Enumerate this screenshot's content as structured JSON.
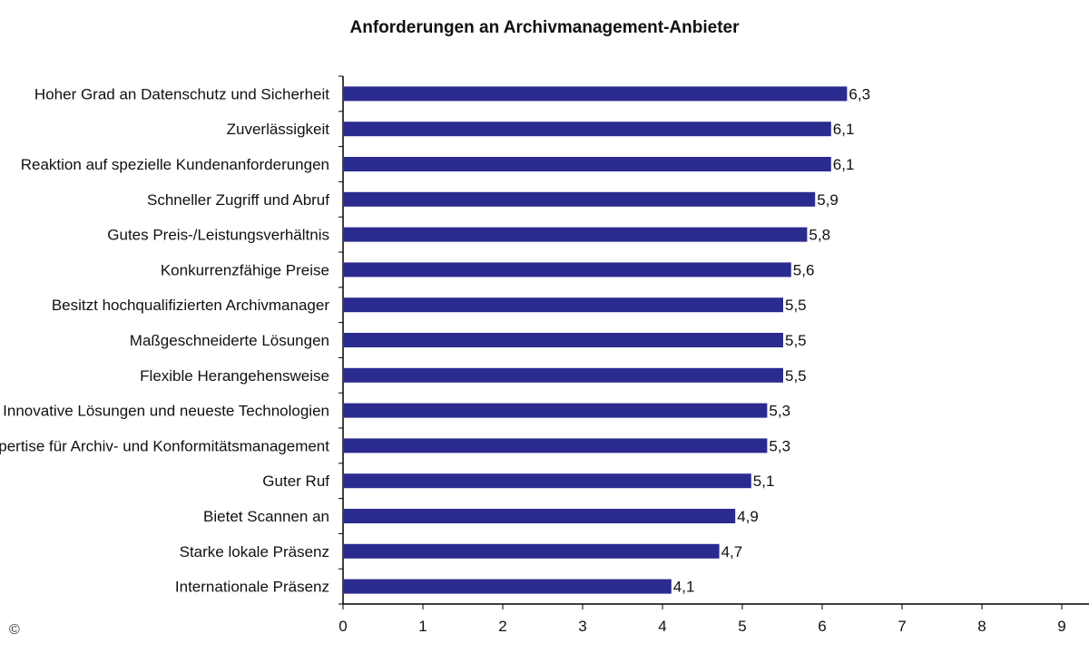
{
  "chart_data": {
    "type": "bar",
    "orientation": "horizontal",
    "title": "Anforderungen an Archivmanagement-Anbieter",
    "categories": [
      "Hoher Grad an Datenschutz und Sicherheit",
      "Zuverlässigkeit",
      "Reaktion auf spezielle Kundenanforderungen",
      "Schneller Zugriff und Abruf",
      "Gutes Preis-/Leistungsverhältnis",
      "Konkurrenzfähige Preise",
      "Besitzt hochqualifizierten Archivmanager",
      "Maßgeschneiderte Lösungen",
      "Flexible Herangehensweise",
      "Innovative Lösungen und neueste Technologien",
      "Expertise für Archiv- und Konformitätsmanagement",
      "Guter Ruf",
      "Bietet Scannen an",
      "Starke lokale Präsenz",
      "Internationale Präsenz"
    ],
    "values": [
      6.3,
      6.1,
      6.1,
      5.9,
      5.8,
      5.6,
      5.5,
      5.5,
      5.5,
      5.3,
      5.3,
      5.1,
      4.9,
      4.7,
      4.1
    ],
    "value_labels": [
      "6,3",
      "6,1",
      "6,1",
      "5,9",
      "5,8",
      "5,6",
      "5,5",
      "5,5",
      "5,5",
      "5,3",
      "5,3",
      "5,1",
      "4,9",
      "4,7",
      "4,1"
    ],
    "xlim": [
      0,
      10
    ],
    "xticks": [
      "0",
      "1",
      "2",
      "3",
      "4",
      "5",
      "6",
      "7",
      "8",
      "9"
    ],
    "grid": false,
    "legend": "none",
    "bar_color": "#2b2b8f"
  },
  "footer": {
    "copyright": "©"
  }
}
